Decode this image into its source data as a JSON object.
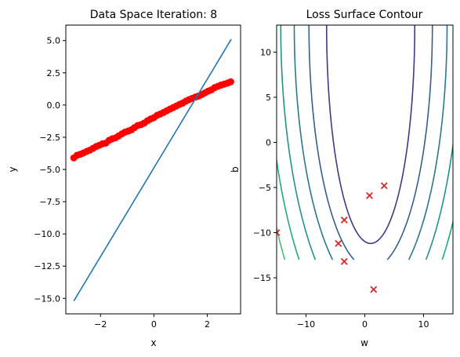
{
  "chart_data": [
    {
      "type": "scatter",
      "title": "Data Space Iteration: 8",
      "xlabel": "x",
      "ylabel": "y",
      "xlim": [
        -3.3,
        3.25
      ],
      "ylim": [
        -16.2,
        6.2
      ],
      "xticks": [
        -2,
        0,
        2
      ],
      "yticks": [
        -15.0,
        -12.5,
        -10.0,
        -7.5,
        -5.0,
        -2.5,
        0.0,
        2.5,
        5.0
      ],
      "yticklabels": [
        "−15.0",
        "−12.5",
        "−10.0",
        "−7.5",
        "−5.0",
        "−2.5",
        "0.0",
        "2.5",
        "5.0"
      ],
      "xticklabels": [
        "−2",
        "0",
        "2"
      ],
      "scatter": {
        "color": "#ff0000",
        "x": [
          -3.0,
          -2.88,
          -2.76,
          -2.64,
          -2.52,
          -2.4,
          -2.28,
          -2.16,
          -2.04,
          -1.92,
          -1.8,
          -1.68,
          -1.56,
          -1.44,
          -1.32,
          -1.2,
          -1.08,
          -0.96,
          -0.84,
          -0.72,
          -0.6,
          -0.48,
          -0.36,
          -0.24,
          -0.12,
          0.0,
          0.12,
          0.24,
          0.36,
          0.48,
          0.6,
          0.72,
          0.84,
          0.96,
          1.08,
          1.2,
          1.32,
          1.44,
          1.56,
          1.68,
          1.8,
          1.92,
          2.04,
          2.16,
          2.28,
          2.4,
          2.52,
          2.64,
          2.76,
          2.88
        ],
        "y": [
          -4.1,
          -3.9,
          -3.82,
          -3.72,
          -3.6,
          -3.5,
          -3.36,
          -3.22,
          -3.12,
          -3.0,
          -2.95,
          -2.74,
          -2.62,
          -2.55,
          -2.4,
          -2.24,
          -2.1,
          -2.02,
          -1.92,
          -1.74,
          -1.58,
          -1.52,
          -1.4,
          -1.22,
          -1.08,
          -0.98,
          -0.8,
          -0.7,
          -0.58,
          -0.45,
          -0.32,
          -0.2,
          -0.08,
          0.05,
          0.15,
          0.3,
          0.42,
          0.52,
          0.62,
          0.7,
          0.82,
          0.95,
          1.08,
          1.18,
          1.35,
          1.45,
          1.55,
          1.62,
          1.7,
          1.8
        ]
      },
      "line": {
        "color": "#1f77b4",
        "x": [
          -3.0,
          2.9
        ],
        "y": [
          -15.2,
          5.1
        ]
      }
    },
    {
      "type": "contour",
      "title": "Loss Surface Contour",
      "xlabel": "w",
      "ylabel": "b",
      "xlim": [
        -15,
        15
      ],
      "ylim": [
        -19,
        13
      ],
      "xticks": [
        -10,
        0,
        10
      ],
      "xticklabels": [
        "−10",
        "0",
        "10"
      ],
      "yticks": [
        -15,
        -10,
        -5,
        0,
        5,
        10
      ],
      "yticklabels": [
        "−15",
        "−10",
        "−5",
        "0",
        "5",
        "10"
      ],
      "contour_center": [
        1.0,
        13.0
      ],
      "contour_ymin": -13,
      "levels": [
        {
          "a": 7.5,
          "b": 24.2,
          "color": "#3e3a84"
        },
        {
          "a": 10.5,
          "b": 27.0,
          "color": "#355f8d"
        },
        {
          "a": 13.0,
          "b": 30.0,
          "color": "#2a788e"
        },
        {
          "a": 15.3,
          "b": 33.0,
          "color": "#21918c"
        },
        {
          "a": 17.6,
          "b": 36.0,
          "color": "#22a884"
        },
        {
          "a": 19.6,
          "b": 39.0,
          "color": "#44bf70"
        },
        {
          "a": 21.6,
          "b": 42.0,
          "color": "#7ad151"
        }
      ],
      "markers": {
        "color": "#d62728",
        "w": [
          -15.0,
          -4.5,
          -3.5,
          -3.5,
          0.8,
          3.3,
          1.5
        ],
        "b": [
          -10.0,
          -11.2,
          -8.6,
          -13.2,
          -5.9,
          -4.8,
          -16.3
        ]
      }
    }
  ]
}
